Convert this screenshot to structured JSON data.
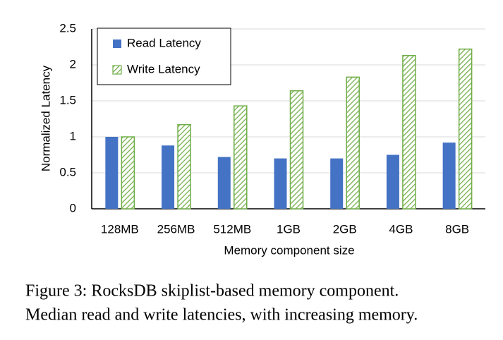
{
  "chart_data": {
    "type": "bar",
    "x_label": "Memory component size",
    "y_label": "Normalized Latency",
    "categories": [
      "128MB",
      "256MB",
      "512MB",
      "1GB",
      "2GB",
      "4GB",
      "8GB"
    ],
    "series": [
      {
        "name": "Read Latency",
        "color": "#4472c4",
        "values": [
          1.0,
          0.88,
          0.72,
          0.7,
          0.7,
          0.75,
          0.92
        ]
      },
      {
        "name": "Write Latency",
        "color": "#70ad47",
        "hatch": true,
        "values": [
          1.0,
          1.17,
          1.43,
          1.64,
          1.83,
          2.13,
          2.22
        ]
      }
    ],
    "ylim": [
      0,
      2.5
    ],
    "yticks": [
      0,
      0.5,
      1,
      1.5,
      2,
      2.5
    ],
    "grid": true,
    "legend": "upper left"
  },
  "caption": [
    "Figure 3: RocksDB skiplist-based memory component.",
    "Median read and write latencies, with increasing memory."
  ]
}
